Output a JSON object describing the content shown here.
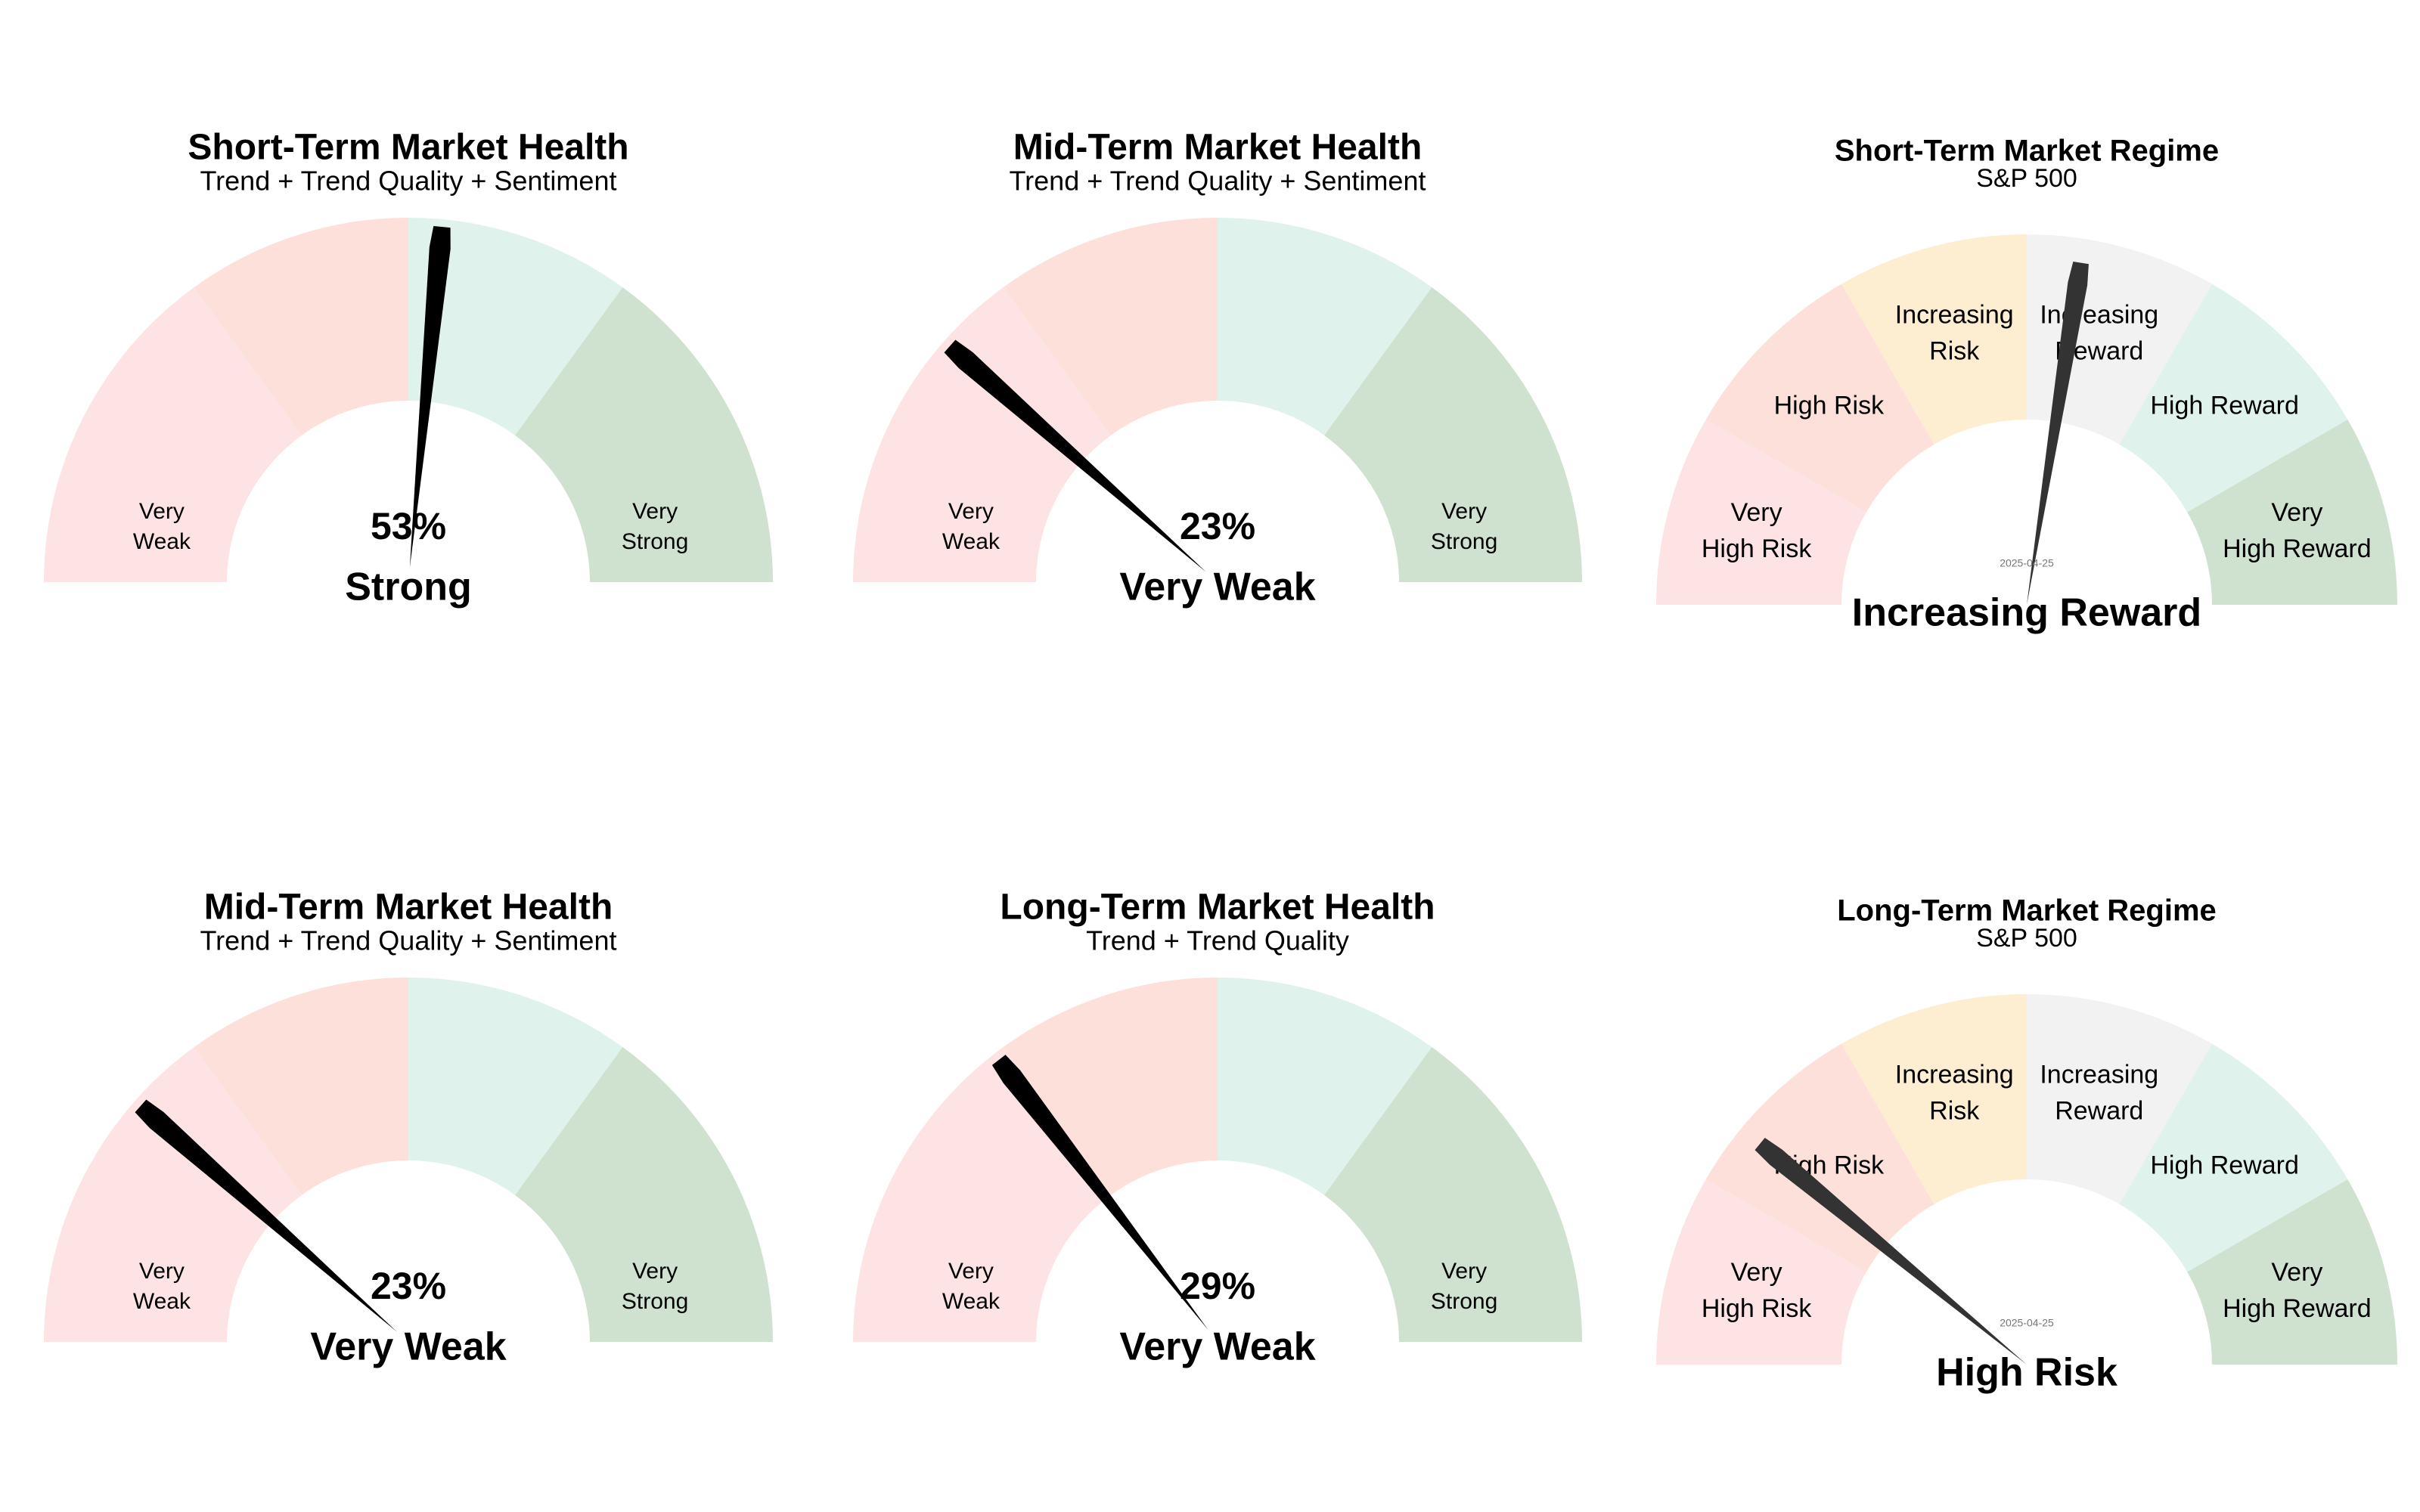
{
  "chart_data": [
    {
      "type": "gauge",
      "title": "Short-Term Market Health",
      "subtitle": "Trend + Trend Quality + Sentiment",
      "value": 53,
      "value_text": "53%",
      "label": "Strong",
      "range": [
        0,
        100
      ],
      "bands": [
        {
          "from": 0,
          "to": 30,
          "color": "#fde3e3"
        },
        {
          "from": 30,
          "to": 50,
          "color": "#fde0d9"
        },
        {
          "from": 50,
          "to": 70,
          "color": "#dff3ec"
        },
        {
          "from": 70,
          "to": 100,
          "color": "#cfe2cf"
        }
      ],
      "band_labels": [
        {
          "at": 15,
          "lines": [
            "Very",
            "Weak"
          ]
        },
        {
          "at": 85,
          "lines": [
            "Very",
            "Strong"
          ]
        }
      ],
      "needle_color": "#000000"
    },
    {
      "type": "gauge",
      "title": "Mid-Term Market Health",
      "subtitle": "Trend + Trend Quality + Sentiment",
      "value": 23,
      "value_text": "23%",
      "label": "Very Weak",
      "range": [
        0,
        100
      ],
      "bands": [
        {
          "from": 0,
          "to": 30,
          "color": "#fde3e3"
        },
        {
          "from": 30,
          "to": 50,
          "color": "#fde0d9"
        },
        {
          "from": 50,
          "to": 70,
          "color": "#dff3ec"
        },
        {
          "from": 70,
          "to": 100,
          "color": "#cfe2cf"
        }
      ],
      "band_labels": [
        {
          "at": 15,
          "lines": [
            "Very",
            "Weak"
          ]
        },
        {
          "at": 85,
          "lines": [
            "Very",
            "Strong"
          ]
        }
      ],
      "needle_color": "#000000"
    },
    {
      "type": "gauge",
      "title": "Short-Term Market Regime",
      "subtitle": "S&P 500",
      "date": "2025-04-25",
      "value": 55,
      "label": "Increasing Reward",
      "range": [
        0,
        100
      ],
      "bands": [
        {
          "from": 0,
          "to": 16.67,
          "color": "#fde3e3",
          "lines": [
            "Very",
            "High Risk"
          ]
        },
        {
          "from": 16.67,
          "to": 33.33,
          "color": "#fde0d9",
          "lines": [
            "High Risk"
          ]
        },
        {
          "from": 33.33,
          "to": 50,
          "color": "#fdedd1",
          "lines": [
            "Increasing",
            "Risk"
          ]
        },
        {
          "from": 50,
          "to": 66.67,
          "color": "#f2f2f2",
          "lines": [
            "Increasing",
            "Reward"
          ]
        },
        {
          "from": 66.67,
          "to": 83.33,
          "color": "#dff3ec",
          "lines": [
            "High Reward"
          ]
        },
        {
          "from": 83.33,
          "to": 100,
          "color": "#cfe2cf",
          "lines": [
            "Very",
            "High Reward"
          ]
        }
      ],
      "needle_color": "#333333"
    },
    {
      "type": "gauge",
      "title": "Mid-Term Market Health",
      "subtitle": "Trend + Trend Quality + Sentiment",
      "value": 23,
      "value_text": "23%",
      "label": "Very Weak",
      "range": [
        0,
        100
      ],
      "bands": [
        {
          "from": 0,
          "to": 30,
          "color": "#fde3e3"
        },
        {
          "from": 30,
          "to": 50,
          "color": "#fde0d9"
        },
        {
          "from": 50,
          "to": 70,
          "color": "#dff3ec"
        },
        {
          "from": 70,
          "to": 100,
          "color": "#cfe2cf"
        }
      ],
      "band_labels": [
        {
          "at": 15,
          "lines": [
            "Very",
            "Weak"
          ]
        },
        {
          "at": 85,
          "lines": [
            "Very",
            "Strong"
          ]
        }
      ],
      "needle_color": "#000000"
    },
    {
      "type": "gauge",
      "title": "Long-Term Market Health",
      "subtitle": "Trend + Trend Quality",
      "value": 29,
      "value_text": "29%",
      "label": "Very Weak",
      "range": [
        0,
        100
      ],
      "bands": [
        {
          "from": 0,
          "to": 30,
          "color": "#fde3e3"
        },
        {
          "from": 30,
          "to": 50,
          "color": "#fde0d9"
        },
        {
          "from": 50,
          "to": 70,
          "color": "#dff3ec"
        },
        {
          "from": 70,
          "to": 100,
          "color": "#cfe2cf"
        }
      ],
      "band_labels": [
        {
          "at": 15,
          "lines": [
            "Very",
            "Weak"
          ]
        },
        {
          "at": 85,
          "lines": [
            "Very",
            "Strong"
          ]
        }
      ],
      "needle_color": "#000000"
    },
    {
      "type": "gauge",
      "title": "Long-Term Market Regime",
      "subtitle": "S&P 500",
      "date": "2025-04-25",
      "value": 22,
      "label": "High Risk",
      "range": [
        0,
        100
      ],
      "bands": [
        {
          "from": 0,
          "to": 16.67,
          "color": "#fde3e3",
          "lines": [
            "Very",
            "High Risk"
          ]
        },
        {
          "from": 16.67,
          "to": 33.33,
          "color": "#fde0d9",
          "lines": [
            "High Risk"
          ]
        },
        {
          "from": 33.33,
          "to": 50,
          "color": "#fdedd1",
          "lines": [
            "Increasing",
            "Risk"
          ]
        },
        {
          "from": 50,
          "to": 66.67,
          "color": "#f2f2f2",
          "lines": [
            "Increasing",
            "Reward"
          ]
        },
        {
          "from": 66.67,
          "to": 83.33,
          "color": "#dff3ec",
          "lines": [
            "High Reward"
          ]
        },
        {
          "from": 83.33,
          "to": 100,
          "color": "#cfe2cf",
          "lines": [
            "Very",
            "High Reward"
          ]
        }
      ],
      "needle_color": "#333333"
    }
  ]
}
